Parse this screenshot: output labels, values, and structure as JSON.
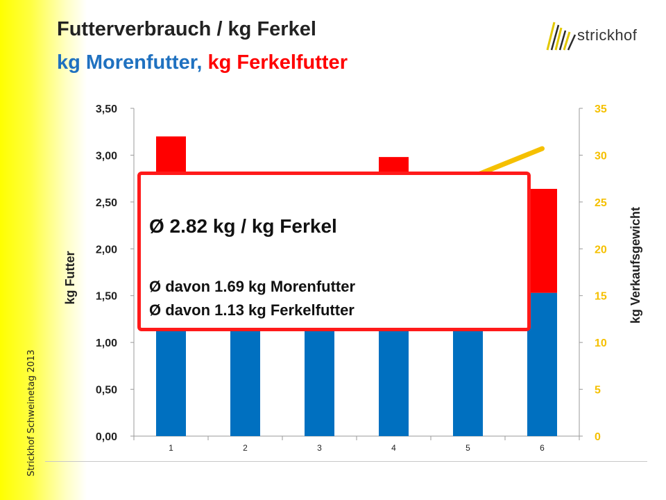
{
  "title": "Futterverbrauch / kg Ferkel",
  "subtitle_part1": "kg Morenfutter,",
  "subtitle_part2": "kg Ferkelfutter",
  "side_text": "Strickhof Schweinetag 2013",
  "logo_text": "strickhof",
  "callout": {
    "main": "Ø 2.82 kg / kg Ferkel",
    "line1": "Ø davon 1.69 kg Morenfutter",
    "line2": "Ø davon 1.13 kg Ferkelfutter"
  },
  "colors": {
    "morenfutter": "#0070c0",
    "ferkelfutter": "#ff0000",
    "verkaufsgewicht": "#f5c000",
    "axis_right": "#f5c000",
    "callout_border": "#ff1a1a",
    "side_gradient": "#ffff00"
  },
  "chart_data": {
    "type": "bar",
    "stacked": true,
    "categories": [
      "1",
      "2",
      "3",
      "4",
      "5",
      "6"
    ],
    "series": [
      {
        "values": [
          1.69,
          1.69,
          1.69,
          1.69,
          1.69,
          1.53
        ],
        "color": "#0070c0"
      },
      {
        "values": [
          1.51,
          1.13,
          1.05,
          1.29,
          1.06,
          1.11
        ],
        "color": "#ff0000"
      },
      {
        "type": "line",
        "axis": "right",
        "values": [
          null,
          null,
          null,
          null,
          27.5,
          30.7
        ],
        "color": "#f5c000"
      }
    ],
    "ylabel": "kg Futter",
    "y2label": "kg Verkaufsgewicht",
    "ylim": [
      0,
      3.5
    ],
    "y2lim": [
      0,
      35
    ],
    "yticks": [
      "0,00",
      "0,50",
      "1,00",
      "1,50",
      "2,00",
      "2,50",
      "3,00",
      "3,50"
    ],
    "y2ticks": [
      "0",
      "5",
      "10",
      "15",
      "20",
      "25",
      "30",
      "35"
    ],
    "grid": false,
    "legend": "none"
  }
}
